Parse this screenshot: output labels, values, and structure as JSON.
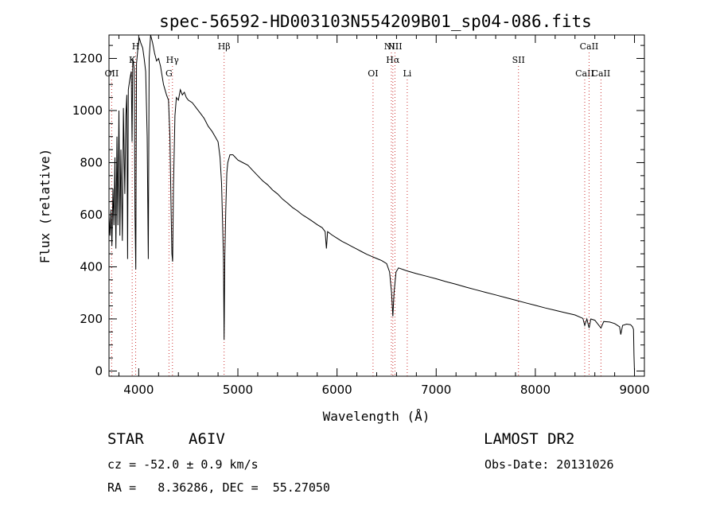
{
  "chart_data": {
    "type": "line",
    "title": "spec-56592-HD003103N554209B01_sp04-086.fits",
    "xlabel": "Wavelength (Å)",
    "ylabel": "Flux (relative)",
    "xlim": [
      3700,
      9100
    ],
    "ylim": [
      -20,
      1290
    ],
    "xticks": [
      4000,
      5000,
      6000,
      7000,
      8000,
      9000
    ],
    "yticks": [
      0,
      200,
      400,
      600,
      800,
      1000,
      1200
    ],
    "grid": false,
    "series": [
      {
        "points": [
          [
            3700,
            600
          ],
          [
            3710,
            520
          ],
          [
            3720,
            620
          ],
          [
            3730,
            480
          ],
          [
            3740,
            700
          ],
          [
            3750,
            560
          ],
          [
            3760,
            820
          ],
          [
            3770,
            470
          ],
          [
            3780,
            900
          ],
          [
            3790,
            560
          ],
          [
            3800,
            1000
          ],
          [
            3810,
            520
          ],
          [
            3820,
            850
          ],
          [
            3835,
            500
          ],
          [
            3845,
            1010
          ],
          [
            3860,
            680
          ],
          [
            3870,
            980
          ],
          [
            3880,
            1060
          ],
          [
            3888,
            430
          ],
          [
            3895,
            1080
          ],
          [
            3910,
            1120
          ],
          [
            3925,
            1150
          ],
          [
            3933,
            880
          ],
          [
            3940,
            1200
          ],
          [
            3955,
            1160
          ],
          [
            3962,
            600
          ],
          [
            3970,
            390
          ],
          [
            3978,
            1180
          ],
          [
            3990,
            1230
          ],
          [
            4005,
            1280
          ],
          [
            4020,
            1260
          ],
          [
            4040,
            1240
          ],
          [
            4055,
            1200
          ],
          [
            4070,
            1150
          ],
          [
            4085,
            900
          ],
          [
            4096,
            430
          ],
          [
            4105,
            1200
          ],
          [
            4120,
            1290
          ],
          [
            4140,
            1260
          ],
          [
            4160,
            1220
          ],
          [
            4180,
            1190
          ],
          [
            4200,
            1200
          ],
          [
            4220,
            1170
          ],
          [
            4250,
            1100
          ],
          [
            4280,
            1060
          ],
          [
            4300,
            1040
          ],
          [
            4315,
            900
          ],
          [
            4325,
            650
          ],
          [
            4335,
            450
          ],
          [
            4342,
            420
          ],
          [
            4350,
            700
          ],
          [
            4365,
            980
          ],
          [
            4380,
            1050
          ],
          [
            4400,
            1040
          ],
          [
            4420,
            1080
          ],
          [
            4440,
            1060
          ],
          [
            4460,
            1070
          ],
          [
            4480,
            1050
          ],
          [
            4500,
            1040
          ],
          [
            4540,
            1030
          ],
          [
            4580,
            1010
          ],
          [
            4620,
            990
          ],
          [
            4660,
            970
          ],
          [
            4700,
            940
          ],
          [
            4740,
            920
          ],
          [
            4770,
            900
          ],
          [
            4800,
            880
          ],
          [
            4820,
            820
          ],
          [
            4835,
            720
          ],
          [
            4845,
            580
          ],
          [
            4855,
            430
          ],
          [
            4861,
            120
          ],
          [
            4868,
            440
          ],
          [
            4878,
            620
          ],
          [
            4888,
            760
          ],
          [
            4898,
            800
          ],
          [
            4920,
            830
          ],
          [
            4950,
            830
          ],
          [
            5000,
            810
          ],
          [
            5050,
            800
          ],
          [
            5100,
            790
          ],
          [
            5150,
            770
          ],
          [
            5200,
            750
          ],
          [
            5250,
            730
          ],
          [
            5300,
            715
          ],
          [
            5350,
            695
          ],
          [
            5400,
            680
          ],
          [
            5450,
            660
          ],
          [
            5500,
            645
          ],
          [
            5550,
            628
          ],
          [
            5600,
            615
          ],
          [
            5650,
            600
          ],
          [
            5700,
            588
          ],
          [
            5750,
            575
          ],
          [
            5800,
            562
          ],
          [
            5850,
            550
          ],
          [
            5880,
            535
          ],
          [
            5893,
            470
          ],
          [
            5905,
            535
          ],
          [
            5950,
            522
          ],
          [
            6000,
            510
          ],
          [
            6050,
            498
          ],
          [
            6100,
            488
          ],
          [
            6150,
            478
          ],
          [
            6200,
            468
          ],
          [
            6250,
            458
          ],
          [
            6300,
            448
          ],
          [
            6350,
            440
          ],
          [
            6400,
            432
          ],
          [
            6450,
            424
          ],
          [
            6500,
            412
          ],
          [
            6530,
            380
          ],
          [
            6550,
            300
          ],
          [
            6563,
            210
          ],
          [
            6575,
            300
          ],
          [
            6595,
            380
          ],
          [
            6620,
            396
          ],
          [
            6700,
            385
          ],
          [
            6800,
            374
          ],
          [
            6900,
            364
          ],
          [
            7000,
            354
          ],
          [
            7100,
            343
          ],
          [
            7200,
            333
          ],
          [
            7300,
            322
          ],
          [
            7400,
            312
          ],
          [
            7500,
            302
          ],
          [
            7600,
            292
          ],
          [
            7700,
            282
          ],
          [
            7800,
            272
          ],
          [
            7900,
            262
          ],
          [
            8000,
            252
          ],
          [
            8100,
            242
          ],
          [
            8200,
            233
          ],
          [
            8300,
            224
          ],
          [
            8400,
            215
          ],
          [
            8480,
            202
          ],
          [
            8498,
            175
          ],
          [
            8520,
            200
          ],
          [
            8542,
            165
          ],
          [
            8560,
            200
          ],
          [
            8600,
            195
          ],
          [
            8662,
            165
          ],
          [
            8690,
            190
          ],
          [
            8750,
            188
          ],
          [
            8800,
            182
          ],
          [
            8850,
            170
          ],
          [
            8862,
            140
          ],
          [
            8880,
            175
          ],
          [
            8920,
            180
          ],
          [
            8960,
            178
          ],
          [
            8980,
            170
          ],
          [
            8990,
            160
          ],
          [
            8995,
            60
          ],
          [
            9000,
            0
          ]
        ]
      }
    ],
    "spectral_lines": [
      {
        "label": "OII",
        "x": 3727,
        "row": 3
      },
      {
        "label": "K",
        "x": 3934,
        "row": 2
      },
      {
        "label": "H",
        "x": 3969,
        "row": 1
      },
      {
        "label": "Hγ",
        "x": 4340,
        "row": 2
      },
      {
        "label": "G",
        "x": 4305,
        "row": 3
      },
      {
        "label": "Hβ",
        "x": 4861,
        "row": 1
      },
      {
        "label": "OI",
        "x": 6363,
        "row": 3
      },
      {
        "label": "NII",
        "x": 6548,
        "row": 1
      },
      {
        "label": "Hα",
        "x": 6563,
        "row": 2
      },
      {
        "label": "NII",
        "x": 6584,
        "row": 1
      },
      {
        "label": "Li",
        "x": 6708,
        "row": 3
      },
      {
        "label": "SII",
        "x": 7830,
        "row": 2
      },
      {
        "label": "CaII",
        "x": 8498,
        "row": 3
      },
      {
        "label": "CaII",
        "x": 8542,
        "row": 1
      },
      {
        "label": "CaII",
        "x": 8662,
        "row": 3
      }
    ]
  },
  "info": {
    "object_class": "STAR",
    "subclass": "A6IV",
    "survey": "LAMOST DR2",
    "redshift": "cz = -52.0 ± 0.9 km/s",
    "obs_date": "Obs-Date: 20131026",
    "coords": "RA =   8.36286, DEC =  55.27050"
  }
}
